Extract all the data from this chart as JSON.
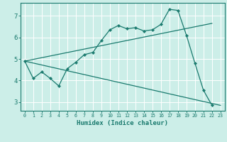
{
  "title": "",
  "xlabel": "Humidex (Indice chaleur)",
  "ylabel": "",
  "background_color": "#cceee8",
  "grid_color": "#ffffff",
  "line_color": "#1a7a6e",
  "xlim": [
    -0.5,
    23.5
  ],
  "ylim": [
    2.6,
    7.6
  ],
  "yticks": [
    3,
    4,
    5,
    6,
    7
  ],
  "xticks": [
    0,
    1,
    2,
    3,
    4,
    5,
    6,
    7,
    8,
    9,
    10,
    11,
    12,
    13,
    14,
    15,
    16,
    17,
    18,
    19,
    20,
    21,
    22,
    23
  ],
  "line1_x": [
    0,
    1,
    2,
    3,
    4,
    5,
    6,
    7,
    8,
    9,
    10,
    11,
    12,
    13,
    14,
    15,
    16,
    17,
    18,
    19,
    20,
    21,
    22
  ],
  "line1_y": [
    4.9,
    4.1,
    4.4,
    4.1,
    3.75,
    4.55,
    4.85,
    5.2,
    5.3,
    5.85,
    6.35,
    6.55,
    6.4,
    6.45,
    6.3,
    6.35,
    6.6,
    7.3,
    7.25,
    6.1,
    4.8,
    3.55,
    2.85
  ],
  "line2_x": [
    0,
    22
  ],
  "line2_y": [
    4.9,
    6.65
  ],
  "line3_x": [
    0,
    23
  ],
  "line3_y": [
    4.9,
    2.85
  ]
}
